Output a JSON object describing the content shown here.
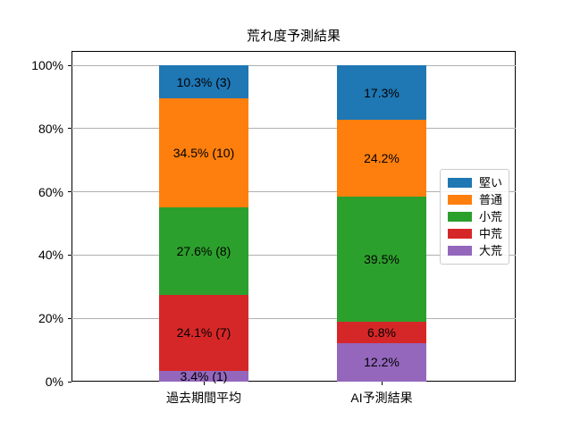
{
  "chart_data": {
    "type": "bar",
    "stacked": true,
    "title": "荒れ度予測結果",
    "categories": [
      "過去期間平均",
      "AI予測結果"
    ],
    "series": [
      {
        "name": "大荒",
        "color": "#9467bd",
        "values": [
          3.4,
          12.2
        ],
        "labels": [
          "3.4% (1)",
          "12.2%"
        ]
      },
      {
        "name": "中荒",
        "color": "#d62728",
        "values": [
          24.1,
          6.8
        ],
        "labels": [
          "24.1% (7)",
          "6.8%"
        ]
      },
      {
        "name": "小荒",
        "color": "#2ca02c",
        "values": [
          27.6,
          39.5
        ],
        "labels": [
          "27.6% (8)",
          "39.5%"
        ]
      },
      {
        "name": "普通",
        "color": "#ff7f0e",
        "values": [
          34.5,
          24.2
        ],
        "labels": [
          "34.5% (10)",
          "24.2%"
        ]
      },
      {
        "name": "堅い",
        "color": "#1f77b4",
        "values": [
          10.3,
          17.3
        ],
        "labels": [
          "10.3% (3)",
          "17.3%"
        ]
      }
    ],
    "legend": {
      "position": "right",
      "entries": [
        "堅い",
        "普通",
        "小荒",
        "中荒",
        "大荒"
      ]
    },
    "yticks": [
      "0%",
      "20%",
      "40%",
      "60%",
      "80%",
      "100%"
    ],
    "ylabel": "",
    "xlabel": "",
    "ylim": [
      0,
      105
    ],
    "grid": true,
    "grid_color": "#b0b0b0"
  }
}
